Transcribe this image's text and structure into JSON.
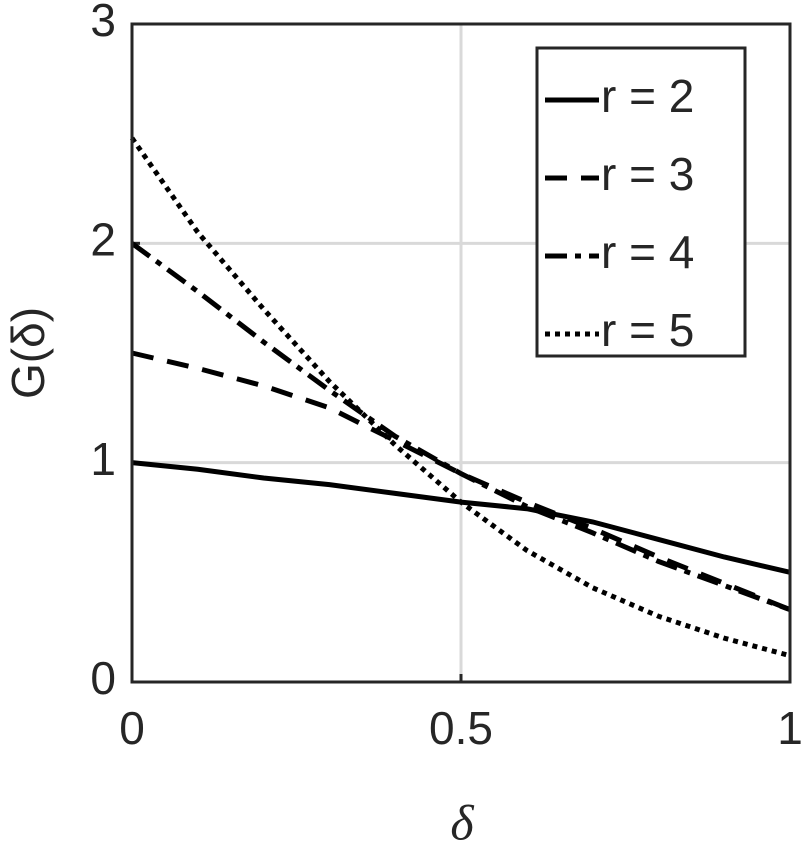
{
  "chart_data": {
    "type": "line",
    "xlabel": "δ",
    "ylabel": "G(δ)",
    "x": [
      0,
      0.1,
      0.2,
      0.3,
      0.4,
      0.5,
      0.6,
      0.7,
      0.8,
      0.9,
      1
    ],
    "series": [
      {
        "name": "r = 2",
        "color": "#000000",
        "dash": "solid",
        "values": [
          1,
          0.97,
          0.93,
          0.9,
          0.86,
          0.82,
          0.79,
          0.73,
          0.65,
          0.57,
          0.5
        ]
      },
      {
        "name": "r = 3",
        "color": "#000000",
        "dash": "dashed",
        "values": [
          1.5,
          1.43,
          1.35,
          1.25,
          1.1,
          0.95,
          0.82,
          0.7,
          0.57,
          0.45,
          0.33
        ]
      },
      {
        "name": "r = 4",
        "color": "#000000",
        "dash": "dashdot",
        "values": [
          2,
          1.78,
          1.55,
          1.33,
          1.12,
          0.95,
          0.8,
          0.68,
          0.55,
          0.44,
          0.33
        ]
      },
      {
        "name": "r = 5",
        "color": "#000000",
        "dash": "dotted",
        "values": [
          2.48,
          2.05,
          1.7,
          1.37,
          1.08,
          0.82,
          0.6,
          0.43,
          0.3,
          0.2,
          0.12
        ]
      }
    ],
    "xlim": [
      0,
      1
    ],
    "xticks": [
      0,
      0.5,
      1
    ],
    "ylim": [
      0,
      3
    ],
    "yticks": [
      0,
      1,
      2,
      3
    ],
    "grid": true,
    "legend": "northeast"
  }
}
